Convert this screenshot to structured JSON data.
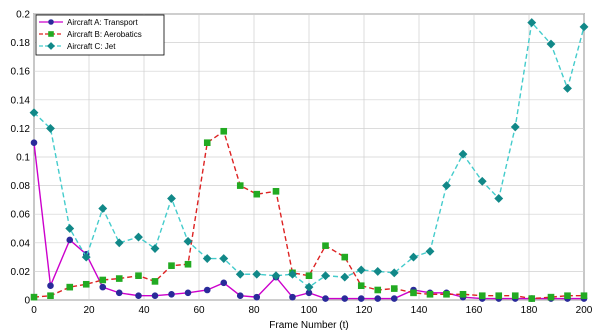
{
  "chart_data": {
    "type": "line",
    "xlabel": "Frame Number (t)",
    "ylabel": "",
    "xlim": [
      0,
      200
    ],
    "ylim": [
      0,
      0.2
    ],
    "xticks": [
      "0",
      "20",
      "40",
      "60",
      "80",
      "100",
      "120",
      "140",
      "160",
      "180",
      "200"
    ],
    "yticks": [
      "0",
      "0.02",
      "0.04",
      "0.06",
      "0.08",
      "0.1",
      "0.12",
      "0.14",
      "0.16",
      "0.18",
      "0.2"
    ],
    "grid": true,
    "legend": "top-left",
    "series": [
      {
        "name": "Aircraft A: Transport",
        "color": "#cc00cc",
        "marker_color": "#2a2a9a",
        "marker": "circle",
        "line_style": "solid",
        "x": [
          0,
          6,
          13,
          19,
          25,
          31,
          38,
          44,
          50,
          56,
          63,
          69,
          75,
          81,
          88,
          94,
          100,
          106,
          113,
          119,
          125,
          131,
          138,
          144,
          150,
          156,
          163,
          169,
          175,
          181,
          188,
          194,
          200
        ],
        "y": [
          0.11,
          0.01,
          0.042,
          0.032,
          0.009,
          0.005,
          0.003,
          0.003,
          0.004,
          0.005,
          0.007,
          0.012,
          0.003,
          0.002,
          0.016,
          0.002,
          0.005,
          0.001,
          0.001,
          0.001,
          0.001,
          0.001,
          0.007,
          0.005,
          0.005,
          0.002,
          0.001,
          0.001,
          0.001,
          0.001,
          0.001,
          0.001,
          0.001
        ]
      },
      {
        "name": "Aircraft B: Aerobatics",
        "color": "#dd2222",
        "marker_color": "#22aa22",
        "marker": "square",
        "line_style": "dashed",
        "x": [
          0,
          6,
          13,
          19,
          25,
          31,
          38,
          44,
          50,
          56,
          63,
          69,
          75,
          81,
          88,
          94,
          100,
          106,
          113,
          119,
          125,
          131,
          138,
          144,
          150,
          156,
          163,
          169,
          175,
          181,
          188,
          194,
          200
        ],
        "y": [
          0.002,
          0.003,
          0.009,
          0.011,
          0.014,
          0.015,
          0.017,
          0.013,
          0.024,
          0.025,
          0.11,
          0.118,
          0.08,
          0.074,
          0.076,
          0.019,
          0.017,
          0.038,
          0.03,
          0.01,
          0.007,
          0.008,
          0.005,
          0.004,
          0.004,
          0.004,
          0.003,
          0.003,
          0.003,
          0.001,
          0.002,
          0.003,
          0.003
        ]
      },
      {
        "name": "Aircraft C: Jet",
        "color": "#44cccc",
        "marker_color": "#118888",
        "marker": "diamond",
        "line_style": "dashed",
        "x": [
          0,
          6,
          13,
          19,
          25,
          31,
          38,
          44,
          50,
          56,
          63,
          69,
          75,
          81,
          88,
          94,
          100,
          106,
          113,
          119,
          125,
          131,
          138,
          144,
          150,
          156,
          163,
          169,
          175,
          181,
          188,
          194,
          200
        ],
        "y": [
          0.131,
          0.12,
          0.05,
          0.03,
          0.064,
          0.04,
          0.044,
          0.036,
          0.071,
          0.041,
          0.029,
          0.029,
          0.018,
          0.018,
          0.017,
          0.018,
          0.009,
          0.017,
          0.016,
          0.021,
          0.02,
          0.019,
          0.03,
          0.034,
          0.08,
          0.102,
          0.083,
          0.071,
          0.121,
          0.194,
          0.179,
          0.148,
          0.191
        ]
      }
    ]
  }
}
